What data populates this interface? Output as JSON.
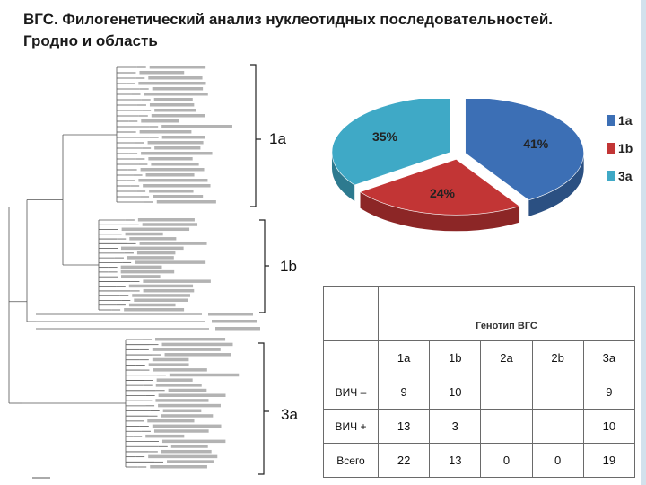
{
  "title": {
    "line1": "ВГС. Филогенетический анализ нуклеотидных последовательностей.",
    "line2": "Гродно и область"
  },
  "tree": {
    "clade_labels": [
      "1a",
      "1b",
      "3a"
    ]
  },
  "chart_data": [
    {
      "type": "pie",
      "title": "",
      "slices": [
        {
          "label": "1a",
          "value": 41,
          "display": "41%",
          "color": "#3c6fb5"
        },
        {
          "label": "1b",
          "value": 24,
          "display": "24%",
          "color": "#c23535"
        },
        {
          "label": "3a",
          "value": 35,
          "display": "35%",
          "color": "#3fa9c6"
        }
      ],
      "legend": {
        "placement": "right",
        "entries": [
          "1a",
          "1b",
          "3a"
        ]
      }
    },
    {
      "type": "table",
      "caption": "Генотип ВГС",
      "columns": [
        "1a",
        "1b",
        "2a",
        "2b",
        "3a"
      ],
      "rows": [
        {
          "label": "ВИЧ –",
          "values": [
            "9",
            "10",
            "",
            "",
            "9"
          ]
        },
        {
          "label": "ВИЧ +",
          "values": [
            "13",
            "3",
            "",
            "",
            "10"
          ]
        },
        {
          "label": "Всего",
          "values": [
            "22",
            "13",
            "0",
            "0",
            "19"
          ]
        }
      ]
    }
  ]
}
